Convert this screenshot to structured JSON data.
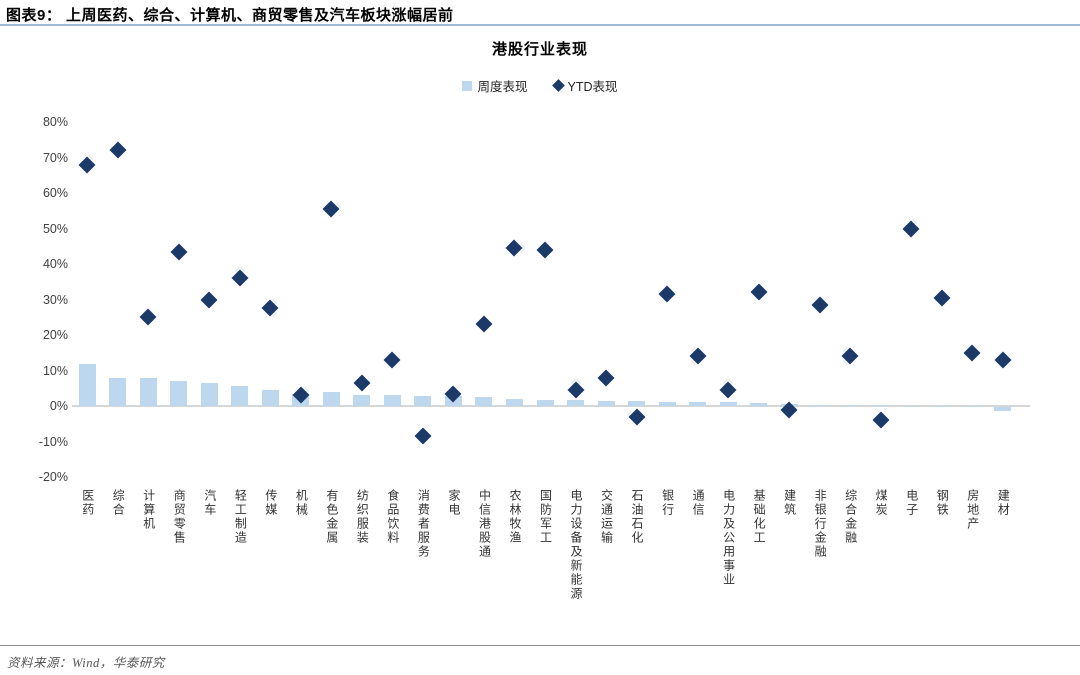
{
  "figure": {
    "title": "图表9： 上周医药、综合、计算机、商贸零售及汽车板块涨幅居前",
    "source": "资料来源：Wind，华泰研究"
  },
  "chart_data": {
    "type": "bar",
    "title": "港股行业表现",
    "legend_position": "top-center",
    "grid": false,
    "ylim": [
      -20,
      80
    ],
    "ytick_values": [
      80,
      70,
      60,
      50,
      40,
      30,
      20,
      10,
      0,
      -10,
      -20
    ],
    "ytick_suffix": "%",
    "categories": [
      "医药",
      "综合",
      "计算机",
      "商贸零售",
      "汽车",
      "轻工制造",
      "传媒",
      "机械",
      "有色金属",
      "纺织服装",
      "食品饮料",
      "消费者服务",
      "家电",
      "中信港股通",
      "农林牧渔",
      "国防军工",
      "电力设备及新能源",
      "交通运输",
      "石油石化",
      "银行",
      "通信",
      "电力及公用事业",
      "基础化工",
      "建筑",
      "非银行金融",
      "综合金融",
      "煤炭",
      "电子",
      "钢铁",
      "房地产",
      "建材"
    ],
    "series": [
      {
        "name": "周度表现",
        "type": "bar",
        "marker": "square",
        "color": "#BDD7EE",
        "values": [
          11.8,
          8.0,
          8.0,
          7.0,
          6.5,
          5.5,
          4.5,
          3.5,
          4.0,
          3.0,
          3.0,
          2.8,
          2.8,
          2.5,
          2.0,
          1.8,
          1.8,
          1.5,
          1.3,
          1.1,
          1.1,
          1.0,
          0.8,
          0.5,
          0.4,
          0.3,
          0.2,
          0.1,
          0.1,
          0.1,
          -1.0
        ]
      },
      {
        "name": "YTD表现",
        "type": "scatter",
        "marker": "diamond",
        "color": "#1B3A68",
        "values": [
          68,
          72,
          25,
          43.5,
          30,
          36,
          27.5,
          3,
          55.5,
          6.5,
          13,
          -8.5,
          3.5,
          23,
          44.5,
          44,
          4.5,
          8,
          -3,
          31.5,
          14,
          4.5,
          32,
          -1,
          28.5,
          14,
          -4,
          50,
          30.5,
          15,
          13
        ]
      }
    ]
  },
  "colors": {
    "title_rule": "#9DBBD9",
    "axis_line": "#D6D6D6",
    "bar": "#BDD7EE",
    "diamond": "#1B3A68"
  }
}
